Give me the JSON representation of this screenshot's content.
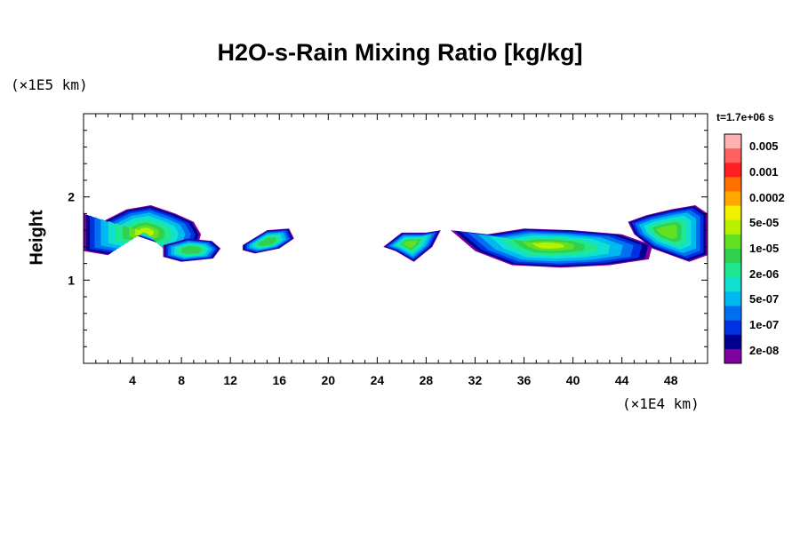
{
  "chart_data": {
    "type": "heatmap",
    "title": "H2O-s-Rain Mixing Ratio [kg/kg]",
    "xlabel": "",
    "ylabel": "Height",
    "x_unit": "(×1E4 km)",
    "y_unit": "(×1E5 km)",
    "time_label": "t=1.7e+06 s",
    "xlim": [
      0,
      51
    ],
    "ylim": [
      0,
      3
    ],
    "x_ticks": [
      4,
      8,
      12,
      16,
      20,
      24,
      28,
      32,
      36,
      40,
      44,
      48
    ],
    "y_ticks": [
      1,
      2
    ],
    "colorbar": {
      "labels": [
        "0.005",
        "0.001",
        "0.0002",
        "5e-05",
        "1e-05",
        "2e-06",
        "5e-07",
        "1e-07",
        "2e-08"
      ],
      "colors": [
        "#ffb0b0",
        "#ff6060",
        "#ff2020",
        "#ff7000",
        "#ffa800",
        "#f0f000",
        "#b8f000",
        "#60e020",
        "#30d050",
        "#20e890",
        "#10e0d0",
        "#00b8f0",
        "#0070f0",
        "#0030e0",
        "#000090",
        "#8000a0"
      ]
    },
    "regions": [
      {
        "name": "band-1",
        "x": [
          0.0,
          1.5,
          3.5,
          5.5,
          7.5,
          9.0,
          9.6,
          9.2,
          7.5,
          6.0,
          4.0,
          2.0,
          0.0
        ],
        "y": [
          1.8,
          1.7,
          1.85,
          1.9,
          1.8,
          1.7,
          1.55,
          1.35,
          1.25,
          1.45,
          1.55,
          1.3,
          1.35
        ],
        "level": 3
      },
      {
        "name": "band-2",
        "x": [
          6.5,
          8.5,
          10.5,
          11.2,
          10.6,
          8.0,
          6.5
        ],
        "y": [
          1.42,
          1.5,
          1.47,
          1.38,
          1.26,
          1.22,
          1.28
        ],
        "level": 1
      },
      {
        "name": "band-3",
        "x": [
          13.0,
          15.0,
          16.8,
          17.2,
          16.0,
          14.0,
          13.0
        ],
        "y": [
          1.42,
          1.6,
          1.62,
          1.5,
          1.38,
          1.32,
          1.36
        ],
        "level": 1
      },
      {
        "name": "band-4",
        "x": [
          24.5,
          26.0,
          28.0,
          29.2,
          28.5,
          27.0,
          25.5,
          24.5
        ],
        "y": [
          1.4,
          1.57,
          1.57,
          1.6,
          1.4,
          1.22,
          1.35,
          1.4
        ],
        "level": 2
      },
      {
        "name": "band-5",
        "x": [
          30.0,
          33.0,
          36.0,
          40.0,
          44.0,
          46.5,
          46.2,
          43.0,
          39.0,
          35.0,
          32.0,
          30.0
        ],
        "y": [
          1.6,
          1.55,
          1.62,
          1.6,
          1.55,
          1.42,
          1.25,
          1.18,
          1.15,
          1.18,
          1.35,
          1.6
        ],
        "level": 3
      },
      {
        "name": "band-6",
        "x": [
          44.5,
          46.0,
          48.0,
          50.0,
          51.0,
          51.0,
          49.5,
          48.0,
          46.5,
          45.0,
          44.5
        ],
        "y": [
          1.7,
          1.78,
          1.85,
          1.9,
          1.8,
          1.3,
          1.22,
          1.3,
          1.38,
          1.55,
          1.7
        ],
        "level": 2
      }
    ]
  }
}
